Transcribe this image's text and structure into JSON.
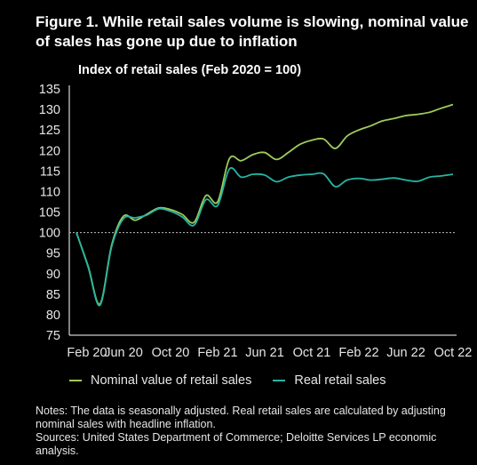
{
  "figure": {
    "title": "Figure 1. While retail sales volume is slowing, nominal value of sales has gone up due to inflation",
    "notes": "Notes: The data is seasonally adjusted. Real retail sales are calculated by adjusting nominal sales with headline inflation.",
    "sources": "Sources: United States Department of Commerce; Deloitte Services LP economic analysis."
  },
  "colors": {
    "background": "#000000",
    "nominal": "#9dcc5b",
    "real": "#26b5a3",
    "reference": "#bfbfbf",
    "axis": "#ffffff"
  },
  "chart_data": {
    "type": "line",
    "title": "Index of retail sales (Feb 2020 = 100)",
    "xlabel": "",
    "ylabel": "",
    "ylim": [
      75,
      135
    ],
    "yticks": [
      75,
      80,
      85,
      90,
      95,
      100,
      105,
      110,
      115,
      120,
      125,
      130,
      135
    ],
    "xtick_labels": [
      "Feb 20",
      "Jun 20",
      "Oct 20",
      "Feb 21",
      "Jun 21",
      "Oct 21",
      "Feb 22",
      "Jun 22",
      "Oct 22"
    ],
    "x": [
      "Feb 20",
      "Mar 20",
      "Apr 20",
      "May 20",
      "Jun 20",
      "Jul 20",
      "Aug 20",
      "Sep 20",
      "Oct 20",
      "Nov 20",
      "Dec 20",
      "Jan 21",
      "Feb 21",
      "Mar 21",
      "Apr 21",
      "May 21",
      "Jun 21",
      "Jul 21",
      "Aug 21",
      "Sep 21",
      "Oct 21",
      "Nov 21",
      "Dec 21",
      "Jan 22",
      "Feb 22",
      "Mar 22",
      "Apr 22",
      "May 22",
      "Jun 22",
      "Jul 22",
      "Aug 22",
      "Sep 22",
      "Oct 22"
    ],
    "reference_line": 100,
    "legend_position": "bottom",
    "grid": false,
    "series": [
      {
        "name": "Nominal value of retail sales",
        "color": "#9dcc5b",
        "values": [
          100,
          91.8,
          82.6,
          97.0,
          104.0,
          103.0,
          104.5,
          106.0,
          105.6,
          104.4,
          102.5,
          109.0,
          107.5,
          118.0,
          117.5,
          119.0,
          119.5,
          117.8,
          119.5,
          121.5,
          122.5,
          122.8,
          120.5,
          123.5,
          125.0,
          126.0,
          127.2,
          127.8,
          128.5,
          128.8,
          129.3,
          130.3,
          131.2
        ]
      },
      {
        "name": "Real retail sales",
        "color": "#26b5a3",
        "values": [
          100,
          91.6,
          82.3,
          96.6,
          103.4,
          103.6,
          104.3,
          105.8,
          105.2,
          103.8,
          101.8,
          108.0,
          106.6,
          115.5,
          113.5,
          114.2,
          114.0,
          112.4,
          113.5,
          114.0,
          114.2,
          114.3,
          111.2,
          112.8,
          113.2,
          112.8,
          113.0,
          113.3,
          112.8,
          112.5,
          113.5,
          113.8,
          114.2
        ]
      }
    ]
  }
}
